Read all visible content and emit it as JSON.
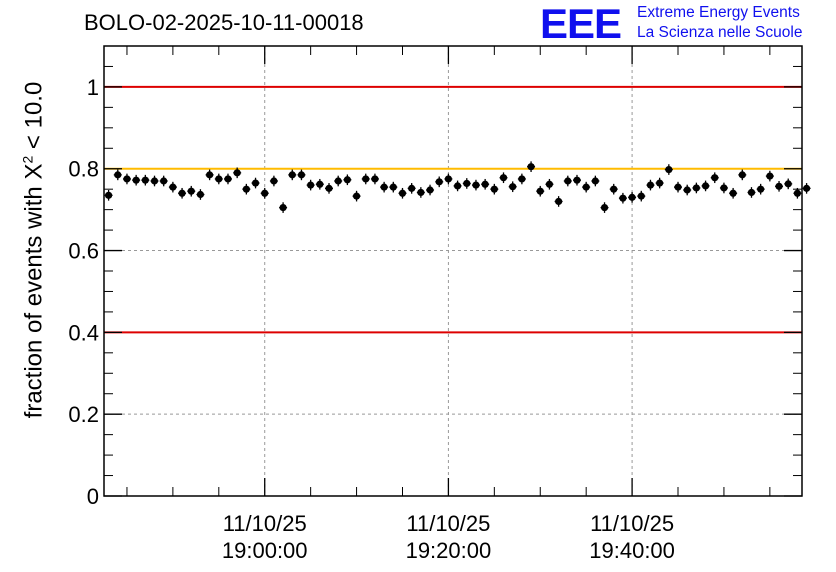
{
  "header": {
    "title": "BOLO-02-2025-10-11-00018",
    "logo_text": "EEE",
    "logo_line1": "Extreme Energy Events",
    "logo_line2": "La Scienza nelle Scuole"
  },
  "axis": {
    "ylabel_prefix": "fraction of events with ",
    "ylabel_symbol": "X",
    "ylabel_exp": "2",
    "ylabel_suffix": " < 10.0"
  },
  "colors": {
    "red_line": "#dd0000",
    "yellow_line": "#ffbb00",
    "marker": "#000000",
    "logo": "#1010ee"
  },
  "chart_data": {
    "type": "scatter",
    "title": "BOLO-02-2025-10-11-00018",
    "ylabel": "fraction of events with X^2 < 10.0",
    "ylim": [
      0,
      1.1
    ],
    "xlim": [
      "2025-10-11T18:42:30",
      "2025-10-11T19:58:30"
    ],
    "y_ticks": [
      "0",
      "0.2",
      "0.4",
      "0.6",
      "0.8",
      "1"
    ],
    "y_tick_values": [
      0,
      0.2,
      0.4,
      0.6,
      0.8,
      1.0
    ],
    "x_ticks": [
      {
        "t": "2025-10-11T19:00:00",
        "date": "11/10/25",
        "time": "19:00:00"
      },
      {
        "t": "2025-10-11T19:20:00",
        "date": "11/10/25",
        "time": "19:20:00"
      },
      {
        "t": "2025-10-11T19:40:00",
        "date": "11/10/25",
        "time": "19:40:00"
      }
    ],
    "grid": true,
    "reference_lines": [
      {
        "y": 1.0,
        "color": "red"
      },
      {
        "y": 0.8,
        "color": "yellow"
      },
      {
        "y": 0.4,
        "color": "red"
      }
    ],
    "x_start": "2025-10-11T18:43:00",
    "x_step_seconds": 60,
    "y_error": 0.013,
    "values": [
      0.735,
      0.785,
      0.775,
      0.772,
      0.772,
      0.77,
      0.77,
      0.755,
      0.74,
      0.745,
      0.737,
      0.785,
      0.775,
      0.775,
      0.79,
      0.75,
      0.765,
      0.74,
      0.77,
      0.705,
      0.785,
      0.785,
      0.76,
      0.762,
      0.752,
      0.77,
      0.773,
      0.733,
      0.775,
      0.775,
      0.755,
      0.755,
      0.74,
      0.752,
      0.742,
      0.748,
      0.768,
      0.775,
      0.758,
      0.764,
      0.76,
      0.762,
      0.75,
      0.778,
      0.756,
      0.775,
      0.805,
      0.745,
      0.762,
      0.72,
      0.77,
      0.772,
      0.755,
      0.77,
      0.705,
      0.75,
      0.728,
      0.73,
      0.733,
      0.76,
      0.765,
      0.798,
      0.755,
      0.748,
      0.753,
      0.758,
      0.778,
      0.753,
      0.74,
      0.785,
      0.742,
      0.75,
      0.782,
      0.757,
      0.763,
      0.74,
      0.752
    ]
  }
}
